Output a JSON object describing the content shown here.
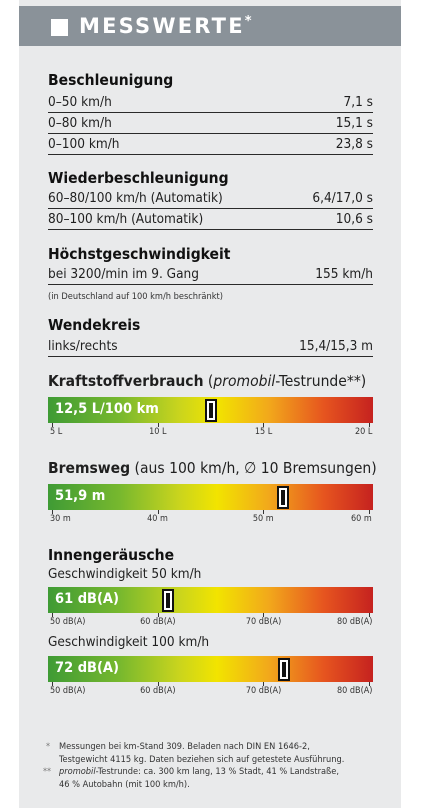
{
  "header": {
    "title": "MESSWERTE",
    "asterisk": "*"
  },
  "acceleration": {
    "heading": "Beschleunigung",
    "rows": [
      {
        "label": "0–50 km/h",
        "value": "7,1 s"
      },
      {
        "label": "0–80 km/h",
        "value": "15,1 s"
      },
      {
        "label": "0–100 km/h",
        "value": "23,8 s"
      }
    ]
  },
  "re_acceleration": {
    "heading": "Wiederbeschleunigung",
    "rows": [
      {
        "label": "60–80/100 km/h (Automatik)",
        "value": "6,4/17,0 s"
      },
      {
        "label": "80–100 km/h (Automatik)",
        "value": "10,6 s"
      }
    ]
  },
  "top_speed": {
    "heading": "Höchstgeschwindigkeit",
    "row": {
      "label": "bei 3200/min im 9. Gang",
      "value": "155 km/h"
    },
    "note": "(in Deutschland auf 100 km/h beschränkt)"
  },
  "turning_circle": {
    "heading": "Wendekreis",
    "row": {
      "label": "links/rechts",
      "value": "15,4/15,3 m"
    }
  },
  "fuel": {
    "heading_bold": "Kraftstoffverbrauch",
    "heading_paren_open": " (",
    "heading_brand": "promobil",
    "heading_rest": "-Testrunde**)",
    "value_text": "12,5 L/100 km",
    "value": 12.5,
    "axis": [
      "5 L",
      "10 L",
      "15 L",
      "20 L"
    ],
    "axis_values": [
      5,
      10,
      15,
      20
    ]
  },
  "braking": {
    "heading_bold": "Bremsweg",
    "heading_rest": " (aus 100 km/h, ∅ 10 Bremsungen)",
    "value_text": "51,9 m",
    "value": 51.9,
    "axis": [
      "30 m",
      "40 m",
      "50 m",
      "60 m"
    ],
    "axis_values": [
      30,
      40,
      50,
      60
    ]
  },
  "noise": {
    "heading": "Innengeräusche",
    "speed50": {
      "label": "Geschwindigkeit 50 km/h",
      "value_text": "61 dB(A)",
      "value": 61,
      "axis": [
        "50 dB(A)",
        "60 dB(A)",
        "70 dB(A)",
        "80 dB(A)"
      ],
      "axis_values": [
        50,
        60,
        70,
        80
      ]
    },
    "speed100": {
      "label": "Geschwindigkeit 100 km/h",
      "value_text": "72 dB(A)",
      "value": 72,
      "axis": [
        "50 dB(A)",
        "60 dB(A)",
        "70 dB(A)",
        "80 dB(A)"
      ],
      "axis_values": [
        50,
        60,
        70,
        80
      ]
    }
  },
  "footnotes": {
    "star1": "*",
    "line1": "Messungen bei km-Stand 309. Beladen nach DIN EN 1646-2,",
    "line2": "Testgewicht 4115 kg. Daten beziehen sich auf getestete Ausführung.",
    "star2": "**",
    "line3_brand": "promobil",
    "line3_rest": "-Testrunde: ca. 300 km lang, 13 % Stadt, 41 % Landstraße,",
    "line4": "46 % Autobahn (mit 100 km/h)."
  }
}
